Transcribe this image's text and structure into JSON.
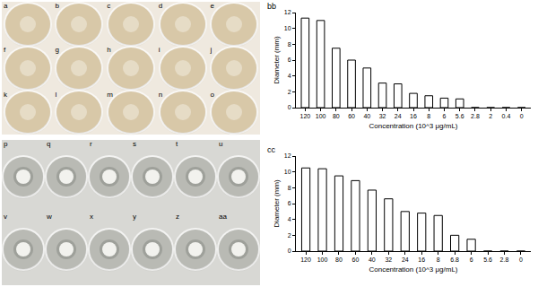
{
  "chart_data": [
    {
      "type": "bar",
      "title": "bb",
      "x_label": "Concentration (10^3 μg/mL)",
      "y_label": "Diameter (mm)",
      "categories": [
        "120",
        "100",
        "80",
        "60",
        "40",
        "32",
        "24",
        "16",
        "8",
        "6",
        "5.6",
        "2.8",
        "2",
        "0.4",
        "0"
      ],
      "values": [
        11.3,
        11,
        7.5,
        6,
        5,
        3.1,
        3,
        1.8,
        1.5,
        1.2,
        1.1,
        0,
        0,
        0,
        0
      ],
      "color": "#ffffff",
      "ylim": [
        0,
        12
      ],
      "yticks": [
        0,
        2,
        4,
        6,
        8,
        10,
        12
      ],
      "grid": false
    },
    {
      "type": "bar",
      "title": "cc",
      "x_label": "Concentration (10^3 μg/mL)",
      "y_label": "Diameter (mm)",
      "categories": [
        "120",
        "100",
        "80",
        "60",
        "40",
        "32",
        "24",
        "16",
        "8",
        "6.8",
        "6",
        "5.6",
        "2.8",
        "0"
      ],
      "values": [
        10.5,
        10.4,
        9.5,
        8.9,
        7.7,
        6.6,
        5,
        4.8,
        4.5,
        2,
        1.5,
        0,
        0,
        0
      ],
      "color": "#ffffff",
      "ylim": [
        0,
        12
      ],
      "yticks": [
        0,
        2,
        4,
        6,
        8,
        10,
        12
      ],
      "grid": false
    }
  ],
  "photos": {
    "top": [
      "a",
      "b",
      "c",
      "d",
      "e",
      "f",
      "g",
      "h",
      "i",
      "j",
      "k",
      "l",
      "m",
      "n",
      "o"
    ],
    "bottom": [
      "p",
      "q",
      "r",
      "s",
      "t",
      "u",
      "v",
      "w",
      "x",
      "y",
      "z",
      "aa"
    ]
  }
}
